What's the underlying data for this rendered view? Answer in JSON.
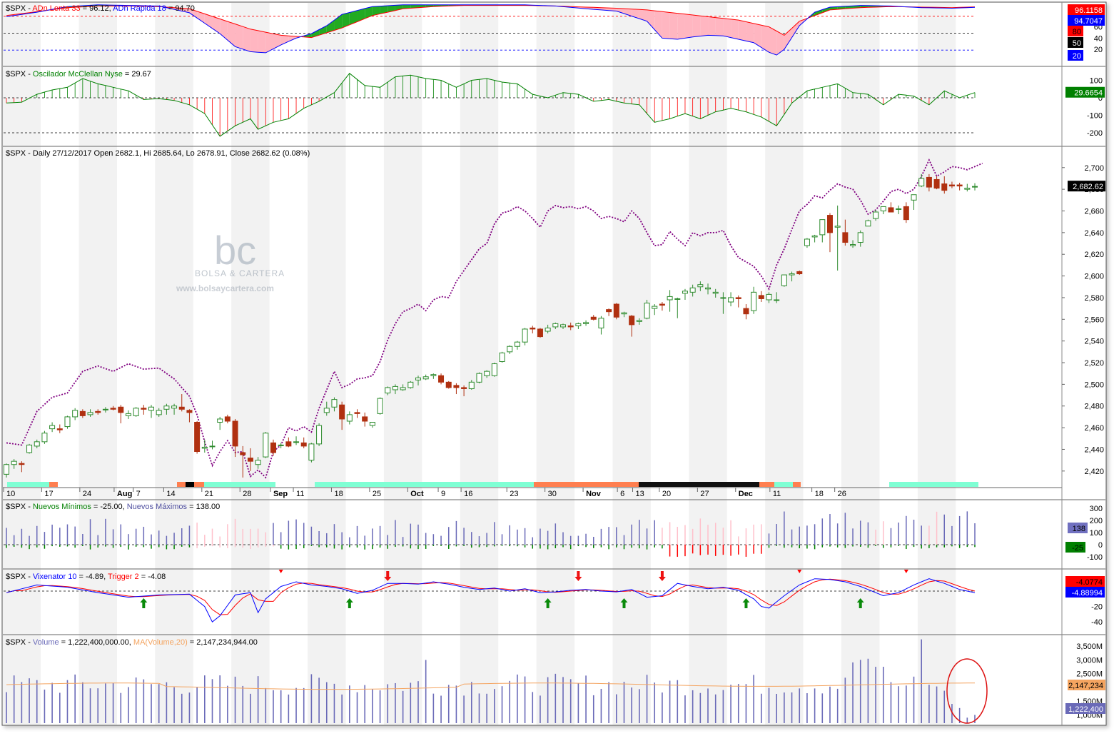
{
  "watermark": {
    "brand": "bc",
    "name": "BOLSA & CARTERA",
    "url": "www.bolsaycartera.com"
  },
  "colors": {
    "up": "#2e8b2e",
    "down": "#b03010",
    "red": "#ff0000",
    "blue": "#0000ff",
    "green": "#008000",
    "pink": "#ffc0cb",
    "purple": "#800080",
    "volume": "#6a6ab8",
    "ma": "#f4a460",
    "highlight": "#ff0000"
  },
  "panels": {
    "adn": {
      "title_ticker": "$SPX",
      "title_a": "ADn Lenta 33",
      "title_a_value": " = 96.12, ",
      "title_b": "ADn Rapida 18",
      "title_b_value": " = 94.70",
      "ticks": [
        "60",
        "40",
        "20"
      ],
      "badges": [
        {
          "text": "96.1158",
          "color": "#ff0000"
        },
        {
          "text": "94.7047",
          "color": "#0000ff"
        },
        {
          "text": "80",
          "color": "#ff0000"
        },
        {
          "text": "50",
          "color": "#000000"
        },
        {
          "text": "20",
          "color": "#0000ff"
        }
      ]
    },
    "mcclellan": {
      "title_ticker": "$SPX",
      "title_a": "Oscilador McClellan Nyse",
      "title_a_value": " = 29.67",
      "ticks": [
        "100",
        "0",
        "-100",
        "-200"
      ],
      "badge": "29.6654"
    },
    "price": {
      "title": "$SPX - Daily 27/12/2017 Open 2682.1, Hi 2685.64, Lo 2678.91, Close 2682.62 (0.08%)",
      "ticks": [
        "2,700",
        "2,680",
        "2,660",
        "2,640",
        "2,620",
        "2,600",
        "2,580",
        "2,560",
        "2,540",
        "2,520",
        "2,500",
        "2,480",
        "2,460",
        "2,440",
        "2,420"
      ],
      "badge": "2,682.62"
    },
    "nuevos": {
      "title_ticker": "$SPX",
      "title_a": "Nuevos Mínimos",
      "title_a_value": " = -25.00, ",
      "title_b": "Nuevos Máximos",
      "title_b_value": " = 138.00",
      "ticks": [
        "300",
        "200",
        "100",
        "0",
        "-100"
      ],
      "badges": [
        {
          "text": "138",
          "color": "#7070c0"
        },
        {
          "text": "-25",
          "color": "#008000"
        }
      ]
    },
    "vix": {
      "title_ticker": "$SPX",
      "title_a": "Vixenator 10",
      "title_a_value": " = -4.89, ",
      "title_b": "Trigger 2",
      "title_b_value": " = -4.08",
      "ticks": [
        "-20",
        "-40"
      ],
      "badges": [
        {
          "text": "-4.0774",
          "color": "#ff0000"
        },
        {
          "text": "-4.88994",
          "color": "#0000ff"
        }
      ]
    },
    "volume": {
      "title_ticker": "$SPX",
      "title_a": "Volume",
      "title_a_value": " = 1,222,400,000.00, ",
      "title_b": "MA(Volume,20)",
      "title_b_value": " = 2,147,234,944.00",
      "ticks": [
        "3,500M",
        "3,000M",
        "2,500M",
        "1,500M",
        "1,000M"
      ],
      "badges": [
        {
          "text": "2,147,234",
          "color": "#f4a460"
        },
        {
          "text": "1,222,400",
          "color": "#6a6ab8"
        }
      ]
    }
  },
  "chart_data": [
    {
      "type": "line",
      "name": "ADn",
      "series": [
        {
          "name": "ADn Lenta 33",
          "last": 96.12
        },
        {
          "name": "ADn Rapida 18",
          "last": 94.7
        }
      ],
      "levels": [
        80,
        50,
        20
      ]
    },
    {
      "type": "area",
      "name": "McClellan",
      "series": [
        {
          "name": "Oscilador McClellan Nyse",
          "last": 29.67
        }
      ],
      "ylim": [
        -230,
        130
      ]
    },
    {
      "type": "candlestick",
      "name": "SPX Daily",
      "ylim": [
        2410,
        2715
      ],
      "x_labels": [
        "10",
        "17",
        "24",
        "Aug",
        "7",
        "14",
        "21",
        "28",
        "Sep",
        "11",
        "18",
        "25",
        "Oct",
        "9",
        "16",
        "23",
        "30",
        "Nov",
        "6",
        "13",
        "20",
        "27",
        "Dec",
        "11",
        "18",
        "26"
      ],
      "ohlc": [
        [
          2417,
          2427,
          2414,
          2426
        ],
        [
          2426,
          2431,
          2422,
          2429
        ],
        [
          2427,
          2429,
          2419,
          2426
        ],
        [
          2437,
          2445,
          2436,
          2444
        ],
        [
          2443,
          2449,
          2441,
          2447
        ],
        [
          2447,
          2457,
          2445,
          2455
        ],
        [
          2459,
          2465,
          2456,
          2462
        ],
        [
          2459,
          2463,
          2455,
          2458
        ],
        [
          2461,
          2471,
          2459,
          2470
        ],
        [
          2470,
          2478,
          2467,
          2476
        ],
        [
          2475,
          2477,
          2469,
          2471
        ],
        [
          2472,
          2477,
          2470,
          2474
        ],
        [
          2475,
          2477,
          2472,
          2474
        ],
        [
          2477,
          2479,
          2474,
          2477
        ],
        [
          2478,
          2480,
          2476,
          2477
        ],
        [
          2479,
          2481,
          2464,
          2474
        ],
        [
          2471,
          2476,
          2468,
          2473
        ],
        [
          2471,
          2479,
          2470,
          2478
        ],
        [
          2478,
          2481,
          2472,
          2477
        ],
        [
          2476,
          2481,
          2469,
          2479
        ],
        [
          2472,
          2478,
          2470,
          2476
        ],
        [
          2477,
          2482,
          2472,
          2480
        ],
        [
          2478,
          2482,
          2472,
          2480
        ],
        [
          2479,
          2491,
          2475,
          2477
        ],
        [
          2476,
          2477,
          2465,
          2474
        ],
        [
          2465,
          2466,
          2436,
          2438
        ],
        [
          2441,
          2449,
          2437,
          2442
        ],
        [
          2443,
          2448,
          2440,
          2443
        ],
        [
          2465,
          2470,
          2458,
          2468
        ],
        [
          2470,
          2472,
          2464,
          2466
        ],
        [
          2466,
          2468,
          2433,
          2443
        ],
        [
          2437,
          2443,
          2414,
          2435
        ],
        [
          2432,
          2441,
          2420,
          2429
        ],
        [
          2426,
          2433,
          2422,
          2430
        ],
        [
          2433,
          2456,
          2432,
          2455
        ],
        [
          2446,
          2449,
          2434,
          2437
        ],
        [
          2444,
          2446,
          2441,
          2444
        ],
        [
          2447,
          2451,
          2442,
          2443
        ],
        [
          2447,
          2452,
          2444,
          2447
        ],
        [
          2446,
          2451,
          2441,
          2443
        ],
        [
          2430,
          2446,
          2428,
          2445
        ],
        [
          2445,
          2464,
          2443,
          2462
        ],
        [
          2474,
          2484,
          2471,
          2478
        ],
        [
          2479,
          2488,
          2475,
          2486
        ],
        [
          2481,
          2484,
          2458,
          2468
        ],
        [
          2466,
          2475,
          2463,
          2472
        ],
        [
          2474,
          2477,
          2469,
          2473
        ],
        [
          2470,
          2474,
          2461,
          2466
        ],
        [
          2462,
          2465,
          2460,
          2465
        ],
        [
          2473,
          2488,
          2472,
          2487
        ],
        [
          2492,
          2498,
          2490,
          2497
        ],
        [
          2495,
          2500,
          2491,
          2498
        ],
        [
          2495,
          2500,
          2494,
          2497
        ],
        [
          2497,
          2503,
          2496,
          2502
        ],
        [
          2504,
          2508,
          2499,
          2506
        ],
        [
          2505,
          2509,
          2504,
          2507
        ],
        [
          2508,
          2510,
          2505,
          2509
        ],
        [
          2508,
          2510,
          2500,
          2502
        ],
        [
          2502,
          2503,
          2496,
          2497
        ],
        [
          2499,
          2501,
          2491,
          2497
        ],
        [
          2497,
          2499,
          2489,
          2496
        ],
        [
          2496,
          2504,
          2495,
          2502
        ],
        [
          2502,
          2511,
          2501,
          2510
        ],
        [
          2508,
          2513,
          2506,
          2512
        ],
        [
          2508,
          2520,
          2507,
          2519
        ],
        [
          2521,
          2530,
          2520,
          2529
        ],
        [
          2530,
          2536,
          2528,
          2535
        ],
        [
          2535,
          2540,
          2532,
          2539
        ],
        [
          2539,
          2552,
          2536,
          2551
        ],
        [
          2552,
          2554,
          2547,
          2551
        ],
        [
          2551,
          2552,
          2543,
          2544
        ],
        [
          2549,
          2555,
          2547,
          2552
        ],
        [
          2553,
          2557,
          2551,
          2556
        ],
        [
          2553,
          2556,
          2551,
          2555
        ],
        [
          2554,
          2557,
          2550,
          2553
        ],
        [
          2554,
          2557,
          2551,
          2556
        ],
        [
          2556,
          2559,
          2554,
          2557
        ],
        [
          2562,
          2564,
          2559,
          2560
        ],
        [
          2552,
          2563,
          2546,
          2561
        ],
        [
          2569,
          2570,
          2563,
          2567
        ],
        [
          2574,
          2575,
          2560,
          2562
        ],
        [
          2565,
          2567,
          2562,
          2566
        ],
        [
          2563,
          2564,
          2544,
          2555
        ],
        [
          2558,
          2561,
          2555,
          2559
        ],
        [
          2561,
          2578,
          2560,
          2575
        ],
        [
          2570,
          2574,
          2564,
          2572
        ],
        [
          2574,
          2576,
          2568,
          2573
        ],
        [
          2578,
          2587,
          2567,
          2581
        ],
        [
          2579,
          2580,
          2561,
          2579
        ],
        [
          2584,
          2588,
          2578,
          2586
        ],
        [
          2585,
          2592,
          2581,
          2589
        ],
        [
          2590,
          2595,
          2586,
          2592
        ],
        [
          2588,
          2593,
          2583,
          2589
        ],
        [
          2584,
          2588,
          2580,
          2585
        ],
        [
          2580,
          2585,
          2565,
          2580
        ],
        [
          2576,
          2585,
          2572,
          2580
        ],
        [
          2580,
          2582,
          2571,
          2579
        ],
        [
          2570,
          2574,
          2560,
          2565
        ],
        [
          2568,
          2590,
          2565,
          2585
        ],
        [
          2582,
          2586,
          2576,
          2579
        ],
        [
          2578,
          2585,
          2575,
          2583
        ],
        [
          2578,
          2585,
          2575,
          2578
        ],
        [
          2591,
          2601,
          2590,
          2601
        ],
        [
          2601,
          2604,
          2595,
          2602
        ],
        [
          2604,
          2605,
          2601,
          2602
        ],
        [
          2628,
          2635,
          2626,
          2634
        ],
        [
          2636,
          2638,
          2631,
          2637
        ],
        [
          2638,
          2652,
          2631,
          2652
        ],
        [
          2656,
          2658,
          2622,
          2640
        ],
        [
          2645,
          2665,
          2605,
          2646
        ],
        [
          2640,
          2652,
          2628,
          2631
        ],
        [
          2628,
          2633,
          2626,
          2629
        ],
        [
          2631,
          2642,
          2627,
          2640
        ],
        [
          2646,
          2652,
          2646,
          2651
        ],
        [
          2653,
          2661,
          2651,
          2659
        ],
        [
          2660,
          2664,
          2657,
          2664
        ],
        [
          2663,
          2668,
          2660,
          2659
        ],
        [
          2662,
          2665,
          2657,
          2662
        ],
        [
          2664,
          2668,
          2649,
          2652
        ],
        [
          2670,
          2675,
          2661,
          2675
        ],
        [
          2683,
          2694,
          2682,
          2690
        ],
        [
          2691,
          2694,
          2678,
          2682
        ],
        [
          2689,
          2692,
          2680,
          2681
        ],
        [
          2685,
          2692,
          2676,
          2679
        ],
        [
          2684,
          2687,
          2681,
          2683
        ],
        [
          2684,
          2686,
          2679,
          2683
        ],
        [
          2680,
          2685,
          2678,
          2681
        ],
        [
          2682.1,
          2685.64,
          2678.91,
          2682.62
        ]
      ]
    },
    {
      "type": "bar",
      "name": "Nuevos Mínimos / Máximos",
      "ylim": [
        -150,
        320
      ],
      "series": [
        {
          "name": "Nuevos Mínimos",
          "last": -25
        },
        {
          "name": "Nuevos Máximos",
          "last": 138
        }
      ]
    },
    {
      "type": "line",
      "name": "Vixenator",
      "ylim": [
        -48,
        6
      ],
      "series": [
        {
          "name": "Vixenator 10",
          "last": -4.89
        },
        {
          "name": "Trigger 2",
          "last": -4.08
        }
      ]
    },
    {
      "type": "bar",
      "name": "Volume",
      "ylim": [
        700,
        3900
      ],
      "series": [
        {
          "name": "Volume",
          "last": 1222.4
        },
        {
          "name": "MA(Volume,20)",
          "last": 2147.23
        }
      ]
    }
  ]
}
